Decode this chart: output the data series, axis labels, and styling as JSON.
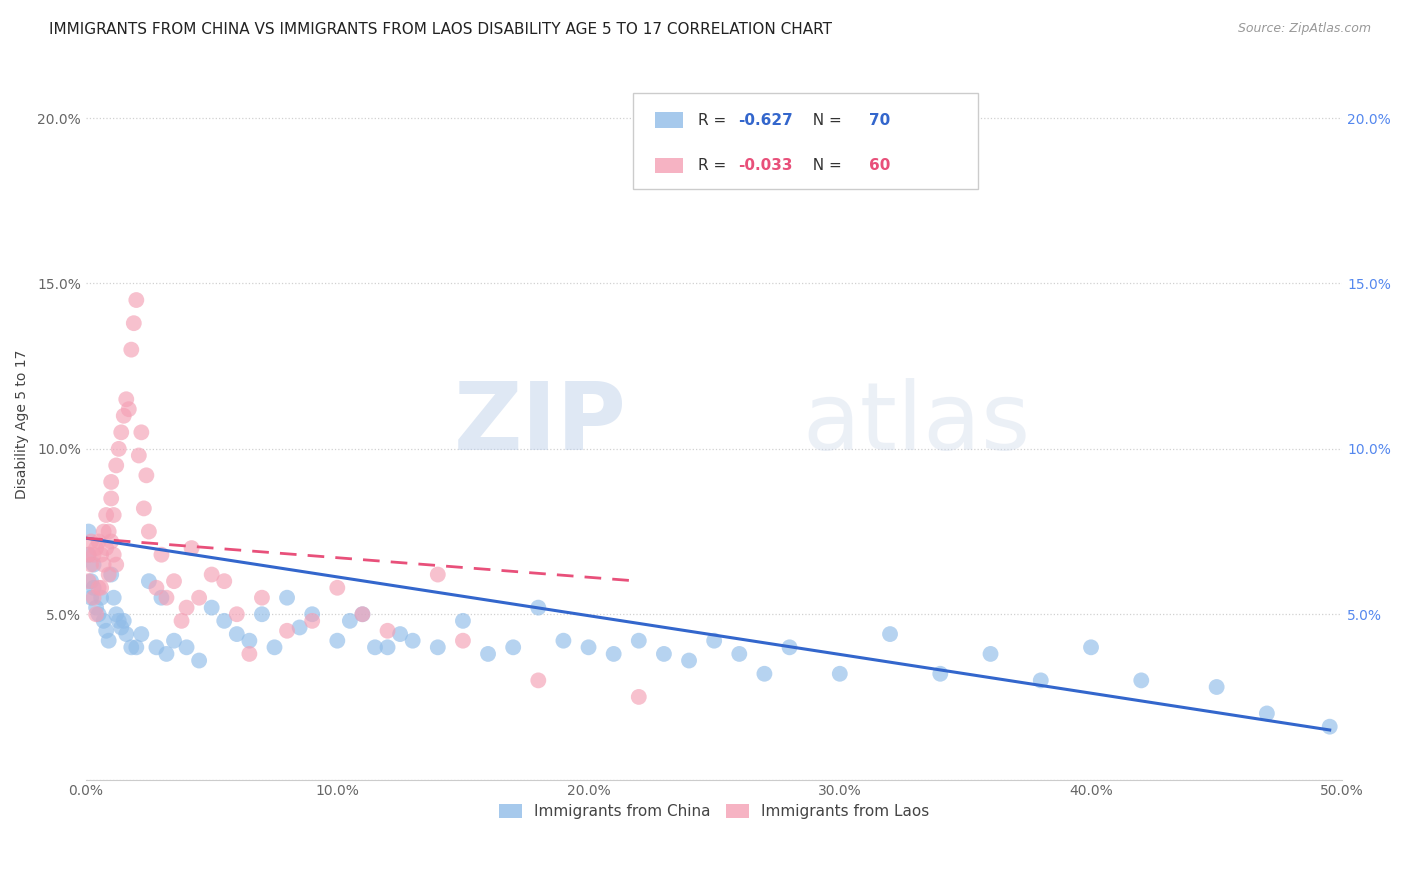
{
  "title": "IMMIGRANTS FROM CHINA VS IMMIGRANTS FROM LAOS DISABILITY AGE 5 TO 17 CORRELATION CHART",
  "source": "Source: ZipAtlas.com",
  "ylabel": "Disability Age 5 to 17",
  "xlim": [
    0.0,
    0.5
  ],
  "ylim": [
    0.0,
    0.215
  ],
  "ytick_values": [
    0.0,
    0.05,
    0.1,
    0.15,
    0.2
  ],
  "ytick_labels_left": [
    "",
    "5.0%",
    "10.0%",
    "15.0%",
    "20.0%"
  ],
  "ytick_labels_right": [
    "",
    "5.0%",
    "10.0%",
    "15.0%",
    "20.0%"
  ],
  "xtick_values": [
    0.0,
    0.1,
    0.2,
    0.3,
    0.4,
    0.5
  ],
  "xtick_labels": [
    "0.0%",
    "10.0%",
    "20.0%",
    "30.0%",
    "40.0%",
    "50.0%"
  ],
  "china_R": "-0.627",
  "china_N": "70",
  "laos_R": "-0.033",
  "laos_N": "60",
  "china_color": "#90bce8",
  "laos_color": "#f4a0b5",
  "china_line_color": "#3366cc",
  "laos_line_color": "#e8507a",
  "china_x": [
    0.001,
    0.001,
    0.002,
    0.002,
    0.003,
    0.003,
    0.004,
    0.005,
    0.006,
    0.007,
    0.008,
    0.009,
    0.01,
    0.011,
    0.012,
    0.013,
    0.014,
    0.015,
    0.016,
    0.018,
    0.02,
    0.022,
    0.025,
    0.028,
    0.03,
    0.032,
    0.035,
    0.04,
    0.045,
    0.05,
    0.055,
    0.06,
    0.065,
    0.07,
    0.075,
    0.08,
    0.085,
    0.09,
    0.1,
    0.105,
    0.11,
    0.115,
    0.12,
    0.125,
    0.13,
    0.14,
    0.15,
    0.16,
    0.17,
    0.18,
    0.19,
    0.2,
    0.21,
    0.22,
    0.23,
    0.24,
    0.25,
    0.26,
    0.27,
    0.28,
    0.3,
    0.32,
    0.34,
    0.36,
    0.38,
    0.4,
    0.42,
    0.45,
    0.47,
    0.495
  ],
  "china_y": [
    0.075,
    0.068,
    0.06,
    0.055,
    0.058,
    0.065,
    0.052,
    0.05,
    0.055,
    0.048,
    0.045,
    0.042,
    0.062,
    0.055,
    0.05,
    0.048,
    0.046,
    0.048,
    0.044,
    0.04,
    0.04,
    0.044,
    0.06,
    0.04,
    0.055,
    0.038,
    0.042,
    0.04,
    0.036,
    0.052,
    0.048,
    0.044,
    0.042,
    0.05,
    0.04,
    0.055,
    0.046,
    0.05,
    0.042,
    0.048,
    0.05,
    0.04,
    0.04,
    0.044,
    0.042,
    0.04,
    0.048,
    0.038,
    0.04,
    0.052,
    0.042,
    0.04,
    0.038,
    0.042,
    0.038,
    0.036,
    0.042,
    0.038,
    0.032,
    0.04,
    0.032,
    0.044,
    0.032,
    0.038,
    0.03,
    0.04,
    0.03,
    0.028,
    0.02,
    0.016
  ],
  "laos_x": [
    0.001,
    0.001,
    0.002,
    0.002,
    0.003,
    0.003,
    0.004,
    0.004,
    0.005,
    0.005,
    0.006,
    0.006,
    0.007,
    0.007,
    0.008,
    0.008,
    0.009,
    0.009,
    0.01,
    0.01,
    0.01,
    0.011,
    0.011,
    0.012,
    0.012,
    0.013,
    0.014,
    0.015,
    0.016,
    0.017,
    0.018,
    0.019,
    0.02,
    0.021,
    0.022,
    0.023,
    0.024,
    0.025,
    0.028,
    0.03,
    0.032,
    0.035,
    0.038,
    0.04,
    0.042,
    0.045,
    0.05,
    0.055,
    0.06,
    0.065,
    0.07,
    0.08,
    0.09,
    0.1,
    0.11,
    0.12,
    0.14,
    0.15,
    0.18,
    0.22
  ],
  "laos_y": [
    0.068,
    0.06,
    0.065,
    0.072,
    0.055,
    0.068,
    0.07,
    0.05,
    0.058,
    0.072,
    0.068,
    0.058,
    0.065,
    0.075,
    0.08,
    0.07,
    0.075,
    0.062,
    0.085,
    0.072,
    0.09,
    0.08,
    0.068,
    0.095,
    0.065,
    0.1,
    0.105,
    0.11,
    0.115,
    0.112,
    0.13,
    0.138,
    0.145,
    0.098,
    0.105,
    0.082,
    0.092,
    0.075,
    0.058,
    0.068,
    0.055,
    0.06,
    0.048,
    0.052,
    0.07,
    0.055,
    0.062,
    0.06,
    0.05,
    0.038,
    0.055,
    0.045,
    0.048,
    0.058,
    0.05,
    0.045,
    0.062,
    0.042,
    0.03,
    0.025
  ],
  "china_trendline_x": [
    0.0,
    0.495
  ],
  "china_trendline_y": [
    0.073,
    0.015
  ],
  "laos_trendline_x": [
    0.0,
    0.22
  ],
  "laos_trendline_y": [
    0.073,
    0.06
  ],
  "watermark_zip": "ZIP",
  "watermark_atlas": "atlas",
  "legend_china_label": "Immigrants from China",
  "legend_laos_label": "Immigrants from Laos",
  "background_color": "#ffffff",
  "title_fontsize": 11,
  "axis_label_fontsize": 10,
  "tick_fontsize": 10,
  "source_fontsize": 9,
  "legend_fontsize": 11
}
